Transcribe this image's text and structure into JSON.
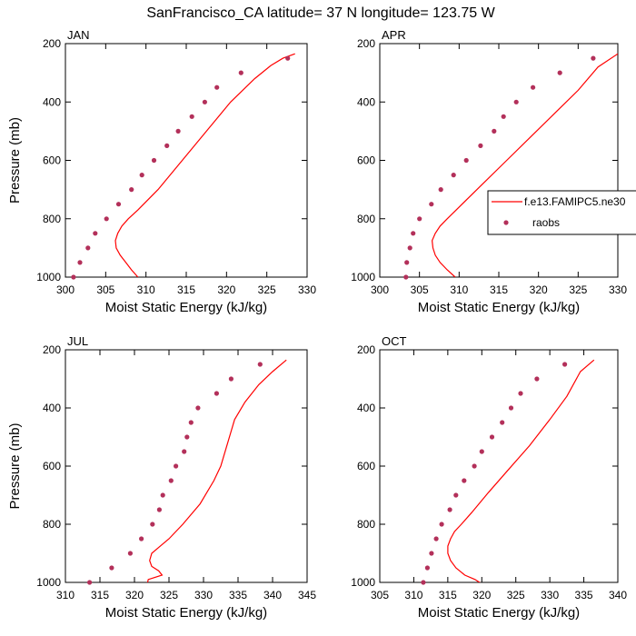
{
  "figure": {
    "title": "SanFrancisco_CA  latitude= 37 N longitude= 123.75 W"
  },
  "legend": {
    "model_label": "f.e13.FAMIPC5.ne30",
    "obs_label": "raobs",
    "placement": "right of APR panel",
    "colors": {
      "model": "#ff0000",
      "obs": "#b3305a"
    }
  },
  "chart_data": [
    {
      "type": "line",
      "panel": "JAN",
      "xlabel": "Moist Static Energy (kJ/kg)",
      "ylabel": "Pressure (mb)",
      "xlim": [
        300,
        330
      ],
      "xticks": [
        300,
        305,
        310,
        315,
        320,
        325,
        330
      ],
      "ylim": [
        1000,
        200
      ],
      "yticks": [
        200,
        400,
        600,
        800,
        1000
      ],
      "series": [
        {
          "kind": "line",
          "points": [
            [
              309,
              1000
            ],
            [
              308.2,
              975
            ],
            [
              307.5,
              950
            ],
            [
              306.8,
              925
            ],
            [
              306.3,
              900
            ],
            [
              306.2,
              875
            ],
            [
              306.5,
              850
            ],
            [
              307,
              825
            ],
            [
              307.8,
              800
            ],
            [
              309,
              770
            ],
            [
              311.5,
              700
            ],
            [
              314.5,
              600
            ],
            [
              317.5,
              500
            ],
            [
              320.5,
              400
            ],
            [
              323.5,
              320
            ],
            [
              325.5,
              275
            ],
            [
              327,
              250
            ],
            [
              328.5,
              235
            ]
          ]
        },
        {
          "kind": "scatter",
          "points": [
            [
              301,
              1000
            ],
            [
              301.8,
              950
            ],
            [
              302.8,
              900
            ],
            [
              303.7,
              850
            ],
            [
              305.1,
              800
            ],
            [
              306.6,
              750
            ],
            [
              308.2,
              700
            ],
            [
              309.5,
              650
            ],
            [
              311,
              600
            ],
            [
              312.6,
              550
            ],
            [
              314,
              500
            ],
            [
              315.7,
              450
            ],
            [
              317.3,
              400
            ],
            [
              318.8,
              350
            ],
            [
              321.8,
              300
            ],
            [
              327.6,
              250
            ]
          ]
        }
      ]
    },
    {
      "type": "line",
      "panel": "APR",
      "xlabel": "Moist Static Energy (kJ/kg)",
      "ylabel": "",
      "xlim": [
        300,
        330
      ],
      "xticks": [
        300,
        305,
        310,
        315,
        320,
        325,
        330
      ],
      "ylim": [
        1000,
        200
      ],
      "yticks": [
        200,
        400,
        600,
        800,
        1000
      ],
      "series": [
        {
          "kind": "line",
          "points": [
            [
              309.5,
              1000
            ],
            [
              308.5,
              975
            ],
            [
              307.6,
              950
            ],
            [
              307,
              925
            ],
            [
              306.7,
              900
            ],
            [
              306.6,
              875
            ],
            [
              307,
              850
            ],
            [
              307.6,
              825
            ],
            [
              308.5,
              800
            ],
            [
              310,
              760
            ],
            [
              313,
              680
            ],
            [
              316,
              600
            ],
            [
              319,
              520
            ],
            [
              322,
              440
            ],
            [
              325,
              360
            ],
            [
              327.5,
              280
            ],
            [
              330,
              235
            ]
          ]
        },
        {
          "kind": "scatter",
          "points": [
            [
              303.3,
              1000
            ],
            [
              303.4,
              950
            ],
            [
              303.8,
              900
            ],
            [
              304.2,
              850
            ],
            [
              305,
              800
            ],
            [
              306.5,
              750
            ],
            [
              307.7,
              700
            ],
            [
              309.3,
              650
            ],
            [
              310.9,
              600
            ],
            [
              312.7,
              550
            ],
            [
              314.4,
              500
            ],
            [
              315.6,
              450
            ],
            [
              317.2,
              400
            ],
            [
              319.3,
              350
            ],
            [
              322.7,
              300
            ],
            [
              326.9,
              250
            ]
          ]
        }
      ]
    },
    {
      "type": "line",
      "panel": "JUL",
      "xlabel": "Moist Static Energy (kJ/kg)",
      "ylabel": "Pressure (mb)",
      "xlim": [
        310,
        345
      ],
      "xticks": [
        310,
        315,
        320,
        325,
        330,
        335,
        340,
        345
      ],
      "ylim": [
        1000,
        200
      ],
      "yticks": [
        200,
        400,
        600,
        800,
        1000
      ],
      "series": [
        {
          "kind": "line",
          "points": [
            [
              321.8,
              1010
            ],
            [
              322,
              990
            ],
            [
              324,
              975
            ],
            [
              323.5,
              960
            ],
            [
              322.5,
              945
            ],
            [
              322.2,
              925
            ],
            [
              322.5,
              900
            ],
            [
              323.5,
              880
            ],
            [
              325,
              850
            ],
            [
              327,
              800
            ],
            [
              329.5,
              730
            ],
            [
              331.5,
              650
            ],
            [
              332.5,
              600
            ],
            [
              333.5,
              520
            ],
            [
              334.5,
              440
            ],
            [
              336,
              380
            ],
            [
              338,
              320
            ],
            [
              340,
              275
            ],
            [
              342,
              235
            ]
          ]
        },
        {
          "kind": "scatter",
          "points": [
            [
              313.5,
              1000
            ],
            [
              316.7,
              950
            ],
            [
              319.4,
              900
            ],
            [
              321,
              850
            ],
            [
              322.6,
              800
            ],
            [
              323.6,
              750
            ],
            [
              324.1,
              700
            ],
            [
              325.3,
              650
            ],
            [
              326,
              600
            ],
            [
              327.2,
              550
            ],
            [
              327.6,
              500
            ],
            [
              328.2,
              450
            ],
            [
              329.2,
              400
            ],
            [
              331.9,
              350
            ],
            [
              334,
              300
            ],
            [
              338.2,
              250
            ]
          ]
        }
      ]
    },
    {
      "type": "line",
      "panel": "OCT",
      "xlabel": "Moist Static Energy (kJ/kg)",
      "ylabel": "",
      "xlim": [
        305,
        340
      ],
      "xticks": [
        305,
        310,
        315,
        320,
        325,
        330,
        335,
        340
      ],
      "ylim": [
        1000,
        200
      ],
      "yticks": [
        200,
        400,
        600,
        800,
        1000
      ],
      "series": [
        {
          "kind": "line",
          "points": [
            [
              320,
              1005
            ],
            [
              319,
              990
            ],
            [
              317.5,
              975
            ],
            [
              316.2,
              950
            ],
            [
              315.4,
              925
            ],
            [
              315,
              900
            ],
            [
              315,
              875
            ],
            [
              315.4,
              850
            ],
            [
              316,
              825
            ],
            [
              317,
              800
            ],
            [
              318.5,
              760
            ],
            [
              321,
              690
            ],
            [
              324,
              610
            ],
            [
              327,
              530
            ],
            [
              330,
              440
            ],
            [
              332.5,
              360
            ],
            [
              334.5,
              275
            ],
            [
              336.5,
              235
            ]
          ]
        },
        {
          "kind": "scatter",
          "points": [
            [
              311.4,
              1000
            ],
            [
              312,
              950
            ],
            [
              312.6,
              900
            ],
            [
              313.3,
              850
            ],
            [
              314.1,
              800
            ],
            [
              315.3,
              750
            ],
            [
              316.2,
              700
            ],
            [
              317.4,
              650
            ],
            [
              318.9,
              600
            ],
            [
              320,
              550
            ],
            [
              321.5,
              500
            ],
            [
              323,
              450
            ],
            [
              324.3,
              400
            ],
            [
              325.7,
              350
            ],
            [
              328.1,
              300
            ],
            [
              332.2,
              250
            ]
          ]
        }
      ]
    }
  ]
}
